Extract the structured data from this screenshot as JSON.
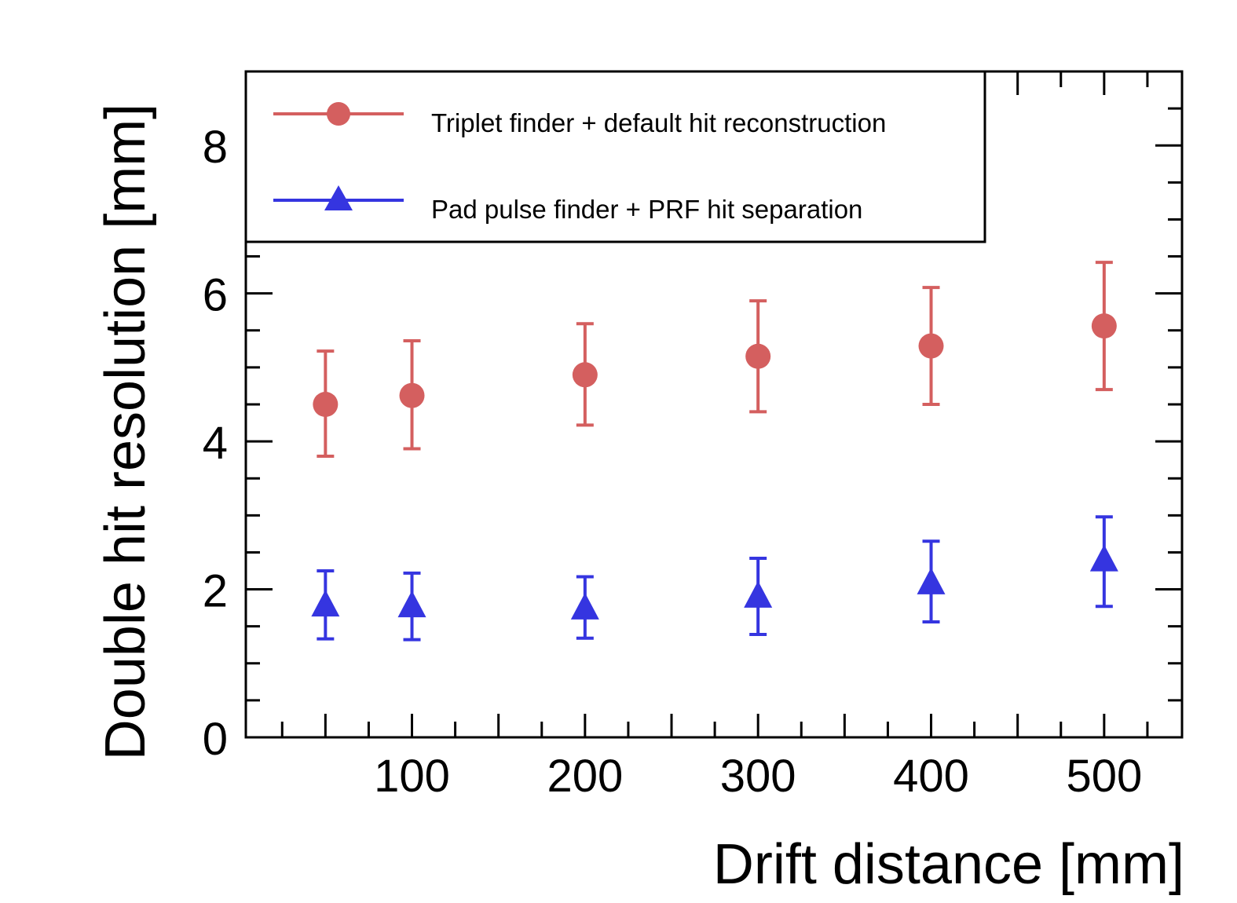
{
  "chart_data": {
    "type": "scatter",
    "title": "",
    "xlabel": "Drift distance [mm]",
    "ylabel": "Double hit resolution [mm]",
    "xlim": [
      4,
      545
    ],
    "ylim": [
      0,
      9
    ],
    "xticks": [
      100,
      200,
      300,
      400,
      500
    ],
    "yticks": [
      0,
      2,
      4,
      6,
      8
    ],
    "grid": false,
    "legend_position": "top-left",
    "series": [
      {
        "name": "Triplet finder + default hit reconstruction",
        "marker": "circle",
        "color": "#d45f5f",
        "x": [
          50,
          100,
          200,
          300,
          400,
          500
        ],
        "y": [
          4.5,
          4.62,
          4.9,
          5.15,
          5.29,
          5.56
        ],
        "err_low": [
          3.8,
          3.9,
          4.22,
          4.4,
          4.5,
          4.7
        ],
        "err_high": [
          5.22,
          5.36,
          5.59,
          5.9,
          6.08,
          6.42
        ]
      },
      {
        "name": "Pad pulse finder + PRF hit separation",
        "marker": "triangle",
        "color": "#3535e0",
        "x": [
          50,
          100,
          200,
          300,
          400,
          500
        ],
        "y": [
          1.77,
          1.76,
          1.73,
          1.89,
          2.07,
          2.38
        ],
        "err_low": [
          1.33,
          1.32,
          1.34,
          1.39,
          1.56,
          1.77
        ],
        "err_high": [
          2.25,
          2.22,
          2.17,
          2.42,
          2.65,
          2.98
        ]
      }
    ]
  }
}
